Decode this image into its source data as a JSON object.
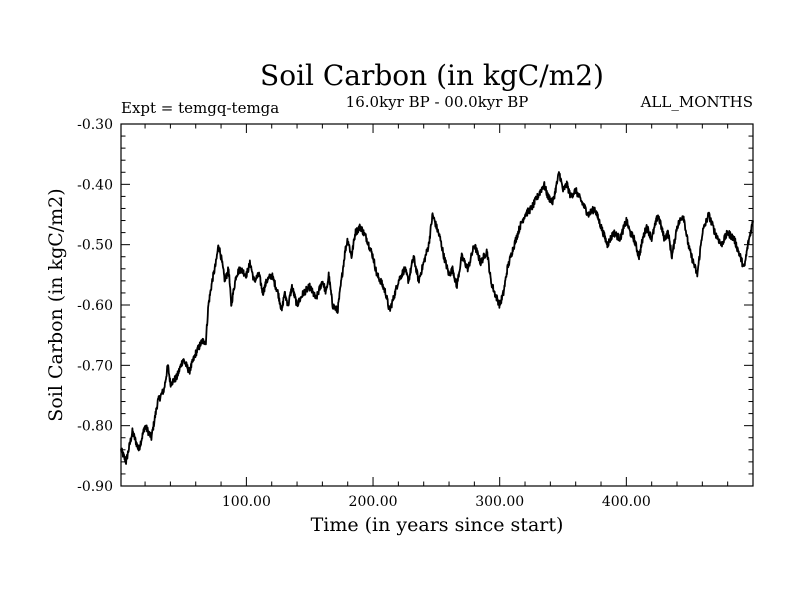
{
  "chart_data": {
    "type": "line",
    "title": "Soil Carbon (in kgC/m2)",
    "subtitle_left": "Expt = temgq-temga",
    "subtitle_center": "16.0kyr BP - 00.0kyr BP",
    "subtitle_right": "ALL_MONTHS",
    "xlabel": "Time (in years since start)",
    "ylabel": "Soil Carbon (in kgC/m2)",
    "xlim": [
      1,
      500
    ],
    "ylim": [
      -0.9,
      -0.3
    ],
    "xticks_labeled": [
      100,
      200,
      300,
      400
    ],
    "xtick_labels": [
      "100.00",
      "200.00",
      "300.00",
      "400.00"
    ],
    "yticks_labeled": [
      -0.9,
      -0.8,
      -0.7,
      -0.6,
      -0.5,
      -0.4,
      -0.3
    ],
    "ytick_labels": [
      "-0.90",
      "-0.80",
      "-0.70",
      "-0.60",
      "-0.50",
      "-0.40",
      "-0.30"
    ],
    "grid": false,
    "series": [
      {
        "name": "soil_carbon",
        "x": [
          1,
          5,
          10,
          15,
          20,
          25,
          30,
          35,
          38,
          40,
          45,
          50,
          55,
          60,
          65,
          68,
          70,
          73,
          76,
          78,
          80,
          83,
          86,
          88,
          92,
          95,
          100,
          103,
          106,
          110,
          113,
          116,
          120,
          125,
          128,
          130,
          133,
          136,
          140,
          145,
          150,
          155,
          160,
          163,
          165,
          168,
          172,
          175,
          178,
          180,
          183,
          186,
          190,
          195,
          200,
          203,
          206,
          210,
          213,
          216,
          220,
          225,
          228,
          232,
          236,
          240,
          244,
          247,
          250,
          253,
          256,
          260,
          263,
          266,
          270,
          275,
          280,
          285,
          290,
          293,
          296,
          300,
          303,
          306,
          310,
          313,
          316,
          320,
          325,
          330,
          335,
          338,
          342,
          345,
          347,
          350,
          353,
          356,
          360,
          365,
          370,
          375,
          380,
          385,
          390,
          395,
          400,
          403,
          406,
          410,
          413,
          416,
          420,
          425,
          430,
          433,
          436,
          440,
          445,
          448,
          450,
          453,
          456,
          460,
          465,
          470,
          475,
          480,
          485,
          490,
          493,
          496,
          500
        ],
        "y": [
          -0.84,
          -0.86,
          -0.81,
          -0.84,
          -0.8,
          -0.82,
          -0.76,
          -0.74,
          -0.7,
          -0.73,
          -0.72,
          -0.69,
          -0.71,
          -0.68,
          -0.66,
          -0.66,
          -0.6,
          -0.56,
          -0.53,
          -0.5,
          -0.52,
          -0.56,
          -0.54,
          -0.6,
          -0.55,
          -0.54,
          -0.55,
          -0.53,
          -0.56,
          -0.55,
          -0.58,
          -0.56,
          -0.55,
          -0.58,
          -0.61,
          -0.58,
          -0.6,
          -0.57,
          -0.6,
          -0.58,
          -0.57,
          -0.59,
          -0.56,
          -0.58,
          -0.55,
          -0.6,
          -0.61,
          -0.56,
          -0.51,
          -0.49,
          -0.52,
          -0.48,
          -0.47,
          -0.49,
          -0.52,
          -0.55,
          -0.56,
          -0.58,
          -0.61,
          -0.59,
          -0.56,
          -0.54,
          -0.56,
          -0.52,
          -0.56,
          -0.53,
          -0.5,
          -0.45,
          -0.47,
          -0.49,
          -0.52,
          -0.55,
          -0.54,
          -0.57,
          -0.52,
          -0.54,
          -0.5,
          -0.53,
          -0.51,
          -0.56,
          -0.58,
          -0.6,
          -0.58,
          -0.54,
          -0.51,
          -0.49,
          -0.47,
          -0.45,
          -0.44,
          -0.42,
          -0.4,
          -0.42,
          -0.43,
          -0.4,
          -0.38,
          -0.41,
          -0.4,
          -0.42,
          -0.41,
          -0.43,
          -0.45,
          -0.44,
          -0.47,
          -0.5,
          -0.48,
          -0.49,
          -0.46,
          -0.48,
          -0.49,
          -0.52,
          -0.49,
          -0.47,
          -0.49,
          -0.45,
          -0.49,
          -0.48,
          -0.52,
          -0.47,
          -0.45,
          -0.49,
          -0.51,
          -0.53,
          -0.55,
          -0.48,
          -0.45,
          -0.48,
          -0.5,
          -0.48,
          -0.49,
          -0.52,
          -0.54,
          -0.5,
          -0.46
        ]
      }
    ]
  },
  "page": {
    "background": "#ffffff",
    "line_color": "#000000"
  }
}
